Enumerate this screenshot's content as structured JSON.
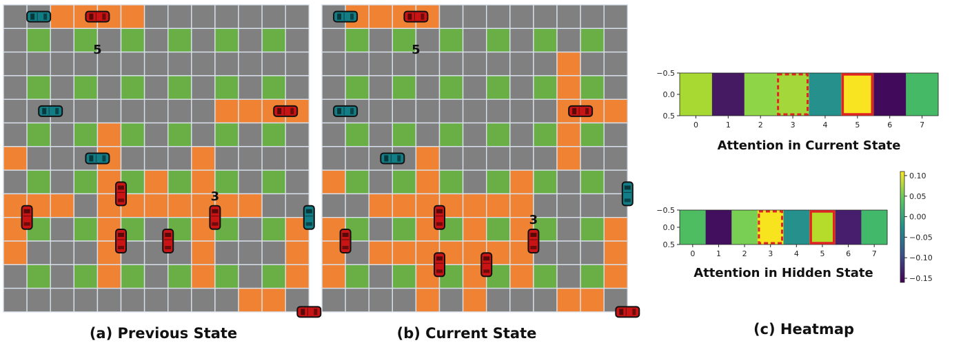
{
  "colors": {
    "gray": "#808080",
    "green": "#6aaf46",
    "orange": "#ef8233",
    "grid_line": "#d9e1ec",
    "red_car": "#c81414",
    "teal_car": "#127d85",
    "highlight": "#e02424"
  },
  "panels": [
    {
      "id": "previous",
      "caption": "(a) Previous State",
      "orange_cells": [
        [
          0,
          2
        ],
        [
          0,
          3
        ],
        [
          0,
          4
        ],
        [
          0,
          5
        ],
        [
          4,
          9
        ],
        [
          4,
          10
        ],
        [
          4,
          11
        ],
        [
          4,
          12
        ],
        [
          5,
          4
        ],
        [
          6,
          0
        ],
        [
          6,
          4
        ],
        [
          6,
          8
        ],
        [
          7,
          4
        ],
        [
          7,
          6
        ],
        [
          7,
          8
        ],
        [
          8,
          0
        ],
        [
          8,
          1
        ],
        [
          8,
          2
        ],
        [
          8,
          4
        ],
        [
          8,
          5
        ],
        [
          8,
          6
        ],
        [
          8,
          7
        ],
        [
          8,
          8
        ],
        [
          8,
          9
        ],
        [
          8,
          10
        ],
        [
          9,
          0
        ],
        [
          9,
          4
        ],
        [
          9,
          8
        ],
        [
          9,
          12
        ],
        [
          10,
          0
        ],
        [
          10,
          4
        ],
        [
          10,
          8
        ],
        [
          10,
          12
        ],
        [
          11,
          4
        ],
        [
          11,
          8
        ],
        [
          11,
          12
        ],
        [
          12,
          10
        ],
        [
          12,
          11
        ]
      ],
      "cars": [
        {
          "color": "teal",
          "dir": "h",
          "row": 0,
          "col": 1
        },
        {
          "color": "red",
          "dir": "h",
          "row": 0,
          "col": 3.5
        },
        {
          "color": "teal",
          "dir": "h",
          "row": 4,
          "col": 1.5
        },
        {
          "color": "red",
          "dir": "h",
          "row": 4,
          "col": 11.5
        },
        {
          "color": "teal",
          "dir": "h",
          "row": 6,
          "col": 3.5
        },
        {
          "color": "red",
          "dir": "v",
          "row": 7.5,
          "col": 4.5
        },
        {
          "color": "red",
          "dir": "v",
          "row": 8.5,
          "col": 0.5
        },
        {
          "color": "red",
          "dir": "v",
          "row": 8.5,
          "col": 8.5
        },
        {
          "color": "teal",
          "dir": "v",
          "row": 8.5,
          "col": 12.5
        },
        {
          "color": "red",
          "dir": "v",
          "row": 9.5,
          "col": 4.5
        },
        {
          "color": "red",
          "dir": "v",
          "row": 9.5,
          "col": 6.5
        },
        {
          "color": "red",
          "dir": "h",
          "row": 12.5,
          "col": 12.5
        }
      ],
      "labels": [
        {
          "text": "5",
          "row": 1.4,
          "col": 3.5
        },
        {
          "text": "3",
          "row": 7.6,
          "col": 8.5
        }
      ]
    },
    {
      "id": "current",
      "caption": "(b) Current State",
      "orange_cells": [
        [
          0,
          1
        ],
        [
          0,
          2
        ],
        [
          0,
          3
        ],
        [
          0,
          4
        ],
        [
          2,
          10
        ],
        [
          3,
          10
        ],
        [
          4,
          10
        ],
        [
          4,
          11
        ],
        [
          4,
          12
        ],
        [
          5,
          10
        ],
        [
          6,
          4
        ],
        [
          6,
          10
        ],
        [
          7,
          0
        ],
        [
          7,
          4
        ],
        [
          7,
          8
        ],
        [
          8,
          2
        ],
        [
          8,
          3
        ],
        [
          8,
          4
        ],
        [
          8,
          5
        ],
        [
          8,
          6
        ],
        [
          8,
          7
        ],
        [
          8,
          8
        ],
        [
          9,
          0
        ],
        [
          9,
          4
        ],
        [
          9,
          6
        ],
        [
          9,
          8
        ],
        [
          9,
          12
        ],
        [
          10,
          0
        ],
        [
          10,
          2
        ],
        [
          10,
          3
        ],
        [
          10,
          4
        ],
        [
          10,
          5
        ],
        [
          10,
          6
        ],
        [
          10,
          7
        ],
        [
          10,
          8
        ],
        [
          10,
          12
        ],
        [
          11,
          0
        ],
        [
          11,
          4
        ],
        [
          11,
          6
        ],
        [
          11,
          8
        ],
        [
          11,
          12
        ],
        [
          12,
          4
        ],
        [
          12,
          6
        ],
        [
          12,
          10
        ],
        [
          12,
          11
        ]
      ],
      "cars": [
        {
          "color": "teal",
          "dir": "h",
          "row": 0,
          "col": 0.5
        },
        {
          "color": "red",
          "dir": "h",
          "row": 0,
          "col": 3.5
        },
        {
          "color": "teal",
          "dir": "h",
          "row": 4,
          "col": 0.5
        },
        {
          "color": "red",
          "dir": "h",
          "row": 4,
          "col": 10.5
        },
        {
          "color": "teal",
          "dir": "h",
          "row": 6,
          "col": 2.5
        },
        {
          "color": "teal",
          "dir": "v",
          "row": 7.5,
          "col": 12.5
        },
        {
          "color": "red",
          "dir": "v",
          "row": 8.5,
          "col": 4.5
        },
        {
          "color": "red",
          "dir": "v",
          "row": 9.5,
          "col": 0.5
        },
        {
          "color": "red",
          "dir": "v",
          "row": 9.5,
          "col": 8.5
        },
        {
          "color": "red",
          "dir": "v",
          "row": 10.5,
          "col": 4.5
        },
        {
          "color": "red",
          "dir": "v",
          "row": 10.5,
          "col": 6.5
        },
        {
          "color": "red",
          "dir": "h",
          "row": 12.5,
          "col": 12.5
        }
      ],
      "labels": [
        {
          "text": "5",
          "row": 1.4,
          "col": 3.5
        },
        {
          "text": "3",
          "row": 8.6,
          "col": 8.5
        }
      ]
    }
  ],
  "heatmap": {
    "caption": "(c) Heatmap",
    "yticks": [
      "−0.5",
      "0.0",
      "0.5"
    ],
    "xticks": [
      "0",
      "1",
      "2",
      "3",
      "4",
      "5",
      "6",
      "7"
    ],
    "maps": [
      {
        "id": "current-attention",
        "title": "Attention in Current State",
        "colors": [
          "#a8d932",
          "#451a63",
          "#8fd548",
          "#a3d73a",
          "#26918c",
          "#f8e421",
          "#410a5a",
          "#45b966"
        ],
        "solid_box": 5,
        "dashed_box": 3
      },
      {
        "id": "hidden-attention",
        "title": "Attention in Hidden State",
        "colors": [
          "#4ebd62",
          "#420f5e",
          "#79cf53",
          "#f8e31f",
          "#26908c",
          "#b5db2b",
          "#471e6d",
          "#42b96a"
        ],
        "solid_box": 5,
        "dashed_box": 3
      }
    ],
    "colorbar": {
      "ticks": [
        "0.10",
        "0.05",
        "0.00",
        "−0.05",
        "−0.10",
        "−0.15"
      ],
      "tick_values": [
        0.1,
        0.05,
        0.0,
        -0.05,
        -0.1,
        -0.15
      ],
      "range": [
        -0.16,
        0.11
      ],
      "stops": [
        "#440154",
        "#3b528b",
        "#21908c",
        "#5dc863",
        "#fde725"
      ]
    }
  }
}
